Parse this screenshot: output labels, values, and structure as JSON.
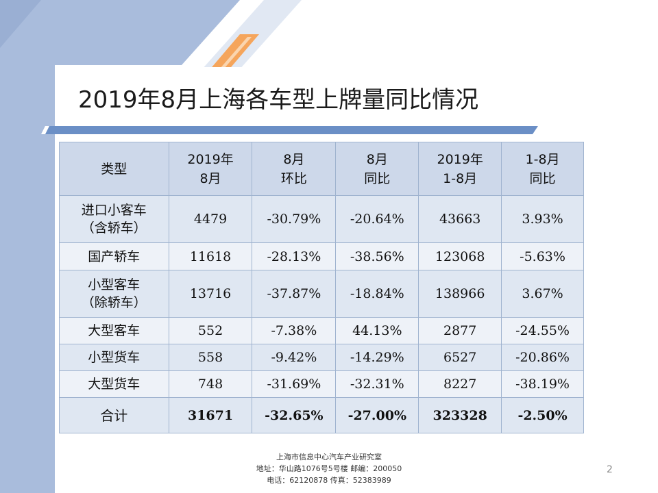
{
  "title": "2019年8月上海各车型上牌量同比情况",
  "table": {
    "headers": [
      {
        "l1": "类型",
        "l2": ""
      },
      {
        "l1": "2019年",
        "l2": "8月"
      },
      {
        "l1": "8月",
        "l2": "环比"
      },
      {
        "l1": "8月",
        "l2": "同比"
      },
      {
        "l1": "2019年",
        "l2": "1-8月"
      },
      {
        "l1": "1-8月",
        "l2": "同比"
      }
    ],
    "rows": [
      {
        "cat1": "进口小客车",
        "cat2": "（含轿车）",
        "v1": "4479",
        "v2": "-30.79%",
        "v3": "-20.64%",
        "v4": "43663",
        "v5": "3.93%"
      },
      {
        "cat1": "国产轿车",
        "cat2": "",
        "v1": "11618",
        "v2": "-28.13%",
        "v3": "-38.56%",
        "v4": "123068",
        "v5": "-5.63%"
      },
      {
        "cat1": "小型客车",
        "cat2": "（除轿车）",
        "v1": "13716",
        "v2": "-37.87%",
        "v3": "-18.84%",
        "v4": "138966",
        "v5": "3.67%"
      },
      {
        "cat1": "大型客车",
        "cat2": "",
        "v1": "552",
        "v2": "-7.38%",
        "v3": "44.13%",
        "v4": "2877",
        "v5": "-24.55%"
      },
      {
        "cat1": "小型货车",
        "cat2": "",
        "v1": "558",
        "v2": "-9.42%",
        "v3": "-14.29%",
        "v4": "6527",
        "v5": "-20.86%"
      },
      {
        "cat1": "大型货车",
        "cat2": "",
        "v1": "748",
        "v2": "-31.69%",
        "v3": "-32.31%",
        "v4": "8227",
        "v5": "-38.19%"
      }
    ],
    "total": {
      "cat1": "合计",
      "v1": "31671",
      "v2": "-32.65%",
      "v3": "-27.00%",
      "v4": "323328",
      "v5": "-2.50%"
    }
  },
  "footer": {
    "line1": "上海市信息中心汽车产业研究室",
    "line2": "地址：华山路1076号5号楼    邮编：200050",
    "line3": "电话：62120878   传真：52383989"
  },
  "page_number": "2",
  "colors": {
    "accent_orange": "#f5a55c",
    "panel_blue": "#a9bcdc",
    "header_fill": "#cdd8ea"
  }
}
